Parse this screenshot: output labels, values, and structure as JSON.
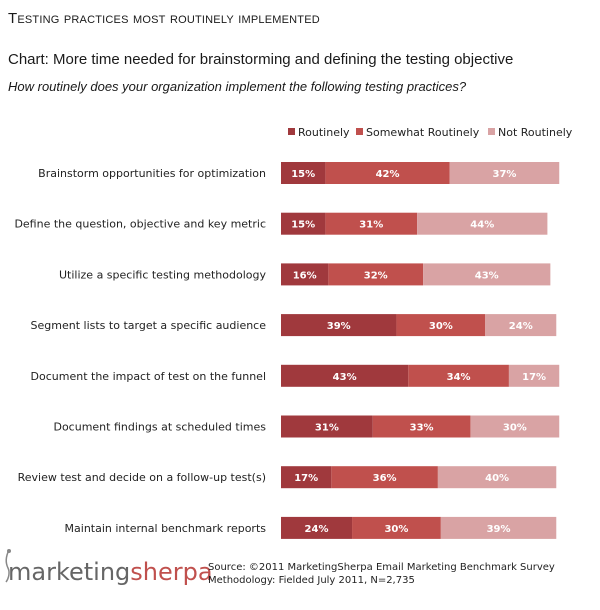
{
  "header": {
    "title": "Testing practices most routinely implemented",
    "subtitle": "Chart: More time needed for brainstorming and defining the testing objective",
    "question": "How routinely does your organization implement the following testing practices?"
  },
  "colors": {
    "routinely": "#a0393d",
    "somewhat": "#c0504d",
    "not": "#d9a3a4"
  },
  "chart_data": {
    "type": "bar",
    "orientation": "horizontal",
    "stacked": true,
    "title": "More time needed for brainstorming and defining the testing objective",
    "xlabel": "",
    "ylabel": "",
    "xlim": [
      0,
      100
    ],
    "legend_position": "top-right",
    "categories": [
      "Brainstorm opportunities for optimization",
      "Define the question, objective and key metric",
      "Utilize a specific testing methodology",
      "Segment lists to target a specific audience",
      "Document the impact of test on the funnel",
      "Document findings at scheduled times",
      "Review test and decide on a follow-up test(s)",
      "Maintain internal benchmark reports"
    ],
    "series": [
      {
        "name": "Routinely",
        "values": [
          15,
          15,
          16,
          39,
          43,
          31,
          17,
          24
        ],
        "labels": [
          "15%",
          "15%",
          "16%",
          "39%",
          "43%",
          "31%",
          "17%",
          "24%"
        ]
      },
      {
        "name": "Somewhat Routinely",
        "values": [
          42,
          31,
          32,
          30,
          34,
          33,
          36,
          30
        ],
        "labels": [
          "42%",
          "31%",
          "32%",
          "30%",
          "34%",
          "33%",
          "36%",
          "30%"
        ]
      },
      {
        "name": "Not Routinely",
        "values": [
          37,
          44,
          43,
          24,
          17,
          30,
          40,
          39
        ],
        "labels": [
          "37%",
          "44%",
          "43%",
          "24%",
          "17%",
          "30%",
          "40%",
          "39%"
        ]
      }
    ]
  },
  "footer": {
    "logo_part1": "marketing",
    "logo_part2": "sherpa",
    "source": "Source: ©2011 MarketingSherpa Email Marketing Benchmark Survey",
    "methodology": "Methodology: Fielded July 2011, N=2,735"
  }
}
